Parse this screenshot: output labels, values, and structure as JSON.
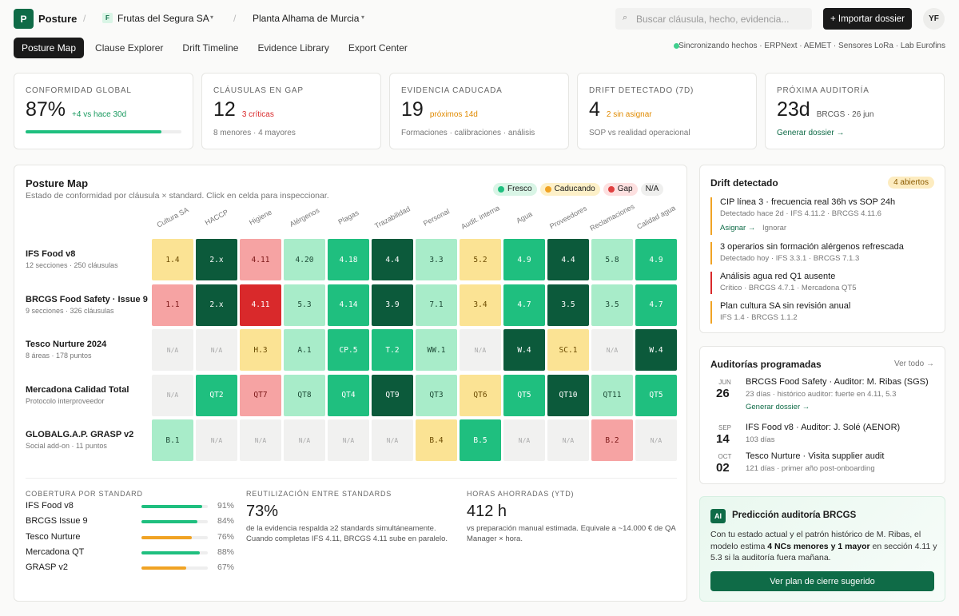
{
  "header": {
    "logo": "P",
    "brand": "Posture",
    "org_badge": "F",
    "org": "Frutas del Segura SA",
    "site": "Planta Alhama de Murcia",
    "search_placeholder": "Buscar cláusula, hecho, evidencia...",
    "import_button": "+ Importar dossier",
    "avatar": "YF"
  },
  "tabs": {
    "items": [
      "Posture Map",
      "Clause Explorer",
      "Drift Timeline",
      "Evidence Library",
      "Export Center"
    ],
    "active": 0
  },
  "sync_status": "Sincronizando hechos · ERPNext · AEMET · Sensores LoRa · Lab Eurofins",
  "kpis": [
    {
      "label": "CONFORMIDAD GLOBAL",
      "value": "87%",
      "progress": 87,
      "note": "+4 vs hace 30d",
      "note_tone": "green"
    },
    {
      "label": "CLÁUSULAS EN GAP",
      "value": "12",
      "note": "3 críticas",
      "note_tone": "red",
      "sub": "8 menores · 4 mayores"
    },
    {
      "label": "EVIDENCIA CADUCADA",
      "value": "19",
      "note": "próximos 14d",
      "note_tone": "orange",
      "sub": "Formaciones · calibraciones · análisis"
    },
    {
      "label": "DRIFT DETECTADO (7D)",
      "value": "4",
      "note": "2 sin asignar",
      "note_tone": "orange",
      "sub": "SOP vs realidad operacional"
    },
    {
      "label": "PRÓXIMA AUDITORÍA",
      "value": "23d",
      "note": "BRCGS · 26 jun",
      "note_tone": "gray",
      "link": "Generar dossier →"
    }
  ],
  "posture_map": {
    "title": "Posture Map",
    "subtitle": "Estado de conformidad por cláusula × standard. Click en celda para inspeccionar.",
    "legend": [
      {
        "label": "Fresco",
        "status": "fresh"
      },
      {
        "label": "Caducando",
        "status": "expiring"
      },
      {
        "label": "Gap",
        "status": "gap"
      },
      {
        "label": "N/A",
        "status": "na"
      }
    ],
    "columns": [
      "Cultura SA",
      "HACCP",
      "Higiene",
      "Alérgenos",
      "Plagas",
      "Trazabilidad",
      "Personal",
      "Audit. interna",
      "Agua",
      "Proveedores",
      "Reclamaciones",
      "Calidad agua"
    ],
    "rows": [
      {
        "name": "IFS Food v8",
        "meta": "12 secciones · 250 cláusulas",
        "cells": [
          {
            "label": "1.4",
            "status": "expiring"
          },
          {
            "label": "2.x",
            "status": "fresh3"
          },
          {
            "label": "4.11",
            "status": "gap"
          },
          {
            "label": "4.20",
            "status": "fresh1"
          },
          {
            "label": "4.18",
            "status": "fresh2"
          },
          {
            "label": "4.4",
            "status": "fresh3"
          },
          {
            "label": "3.3",
            "status": "fresh1"
          },
          {
            "label": "5.2",
            "status": "expiring"
          },
          {
            "label": "4.9",
            "status": "fresh2"
          },
          {
            "label": "4.4",
            "status": "fresh3"
          },
          {
            "label": "5.8",
            "status": "fresh1"
          },
          {
            "label": "4.9",
            "status": "fresh2"
          }
        ]
      },
      {
        "name": "BRCGS Food Safety · Issue 9",
        "meta": "9 secciones · 326 cláusulas",
        "cells": [
          {
            "label": "1.1",
            "status": "gap"
          },
          {
            "label": "2.x",
            "status": "fresh3"
          },
          {
            "label": "4.11",
            "status": "critical"
          },
          {
            "label": "5.3",
            "status": "fresh1"
          },
          {
            "label": "4.14",
            "status": "fresh2"
          },
          {
            "label": "3.9",
            "status": "fresh3"
          },
          {
            "label": "7.1",
            "status": "fresh1"
          },
          {
            "label": "3.4",
            "status": "expiring"
          },
          {
            "label": "4.7",
            "status": "fresh2"
          },
          {
            "label": "3.5",
            "status": "fresh3"
          },
          {
            "label": "3.5",
            "status": "fresh1"
          },
          {
            "label": "4.7",
            "status": "fresh2"
          }
        ]
      },
      {
        "name": "Tesco Nurture 2024",
        "meta": "8 áreas · 178 puntos",
        "cells": [
          {
            "label": "N/A",
            "status": "na"
          },
          {
            "label": "N/A",
            "status": "na"
          },
          {
            "label": "H.3",
            "status": "expiring"
          },
          {
            "label": "A.1",
            "status": "fresh1"
          },
          {
            "label": "CP.5",
            "status": "fresh2"
          },
          {
            "label": "T.2",
            "status": "fresh2"
          },
          {
            "label": "WW.1",
            "status": "fresh1"
          },
          {
            "label": "N/A",
            "status": "na"
          },
          {
            "label": "W.4",
            "status": "fresh3"
          },
          {
            "label": "SC.1",
            "status": "expiring"
          },
          {
            "label": "N/A",
            "status": "na"
          },
          {
            "label": "W.4",
            "status": "fresh3"
          }
        ]
      },
      {
        "name": "Mercadona Calidad Total",
        "meta": "Protocolo interproveedor",
        "cells": [
          {
            "label": "N/A",
            "status": "na"
          },
          {
            "label": "QT2",
            "status": "fresh2"
          },
          {
            "label": "QT7",
            "status": "gap"
          },
          {
            "label": "QT8",
            "status": "fresh1"
          },
          {
            "label": "QT4",
            "status": "fresh2"
          },
          {
            "label": "QT9",
            "status": "fresh3"
          },
          {
            "label": "QT3",
            "status": "fresh1"
          },
          {
            "label": "QT6",
            "status": "expiring"
          },
          {
            "label": "QT5",
            "status": "fresh2"
          },
          {
            "label": "QT10",
            "status": "fresh3"
          },
          {
            "label": "QT11",
            "status": "fresh1"
          },
          {
            "label": "QT5",
            "status": "fresh2"
          }
        ]
      },
      {
        "name": "GLOBALG.A.P. GRASP v2",
        "meta": "Social add-on · 11 puntos",
        "cells": [
          {
            "label": "B.1",
            "status": "fresh1"
          },
          {
            "label": "N/A",
            "status": "na"
          },
          {
            "label": "N/A",
            "status": "na"
          },
          {
            "label": "N/A",
            "status": "na"
          },
          {
            "label": "N/A",
            "status": "na"
          },
          {
            "label": "N/A",
            "status": "na"
          },
          {
            "label": "B.4",
            "status": "expiring"
          },
          {
            "label": "B.5",
            "status": "fresh2"
          },
          {
            "label": "N/A",
            "status": "na"
          },
          {
            "label": "N/A",
            "status": "na"
          },
          {
            "label": "B.2",
            "status": "gap"
          },
          {
            "label": "N/A",
            "status": "na"
          }
        ]
      }
    ]
  },
  "coverage": {
    "title": "COBERTURA POR STANDARD",
    "items": [
      {
        "name": "IFS Food v8",
        "value": 91,
        "label": "91%",
        "color": "#1fbf7f"
      },
      {
        "name": "BRCGS Issue 9",
        "value": 84,
        "label": "84%",
        "color": "#1fbf7f"
      },
      {
        "name": "Tesco Nurture",
        "value": 76,
        "label": "76%",
        "color": "#f0a324"
      },
      {
        "name": "Mercadona QT",
        "value": 88,
        "label": "88%",
        "color": "#1fbf7f"
      },
      {
        "name": "GRASP v2",
        "value": 67,
        "label": "67%",
        "color": "#f0a324"
      }
    ]
  },
  "reuse": {
    "title": "REUTILIZACIÓN ENTRE STANDARDS",
    "value": "73%",
    "text": "de la evidencia respalda ≥2 standards simultáneamente. Cuando completas IFS 4.11, BRCGS 4.11 sube en paralelo."
  },
  "hours": {
    "title": "HORAS AHORRADAS (YTD)",
    "value": "412 h",
    "text": "vs preparación manual estimada. Equivale a ~14.000 € de QA Manager × hora."
  },
  "drift": {
    "title": "Drift detectado",
    "badge": "4 abiertos",
    "items": [
      {
        "title": "CIP línea 3 · frecuencia real 36h vs SOP 24h",
        "meta": "Detectado hace 2d · IFS 4.11.2 · BRCGS 4.11.6",
        "tone": "#f0a324",
        "actions": [
          "Asignar →",
          "Ignorar"
        ]
      },
      {
        "title": "3 operarios sin formación alérgenos refrescada",
        "meta": "Detectado hoy · IFS 3.3.1 · BRCGS 7.1.3",
        "tone": "#f0a324"
      },
      {
        "title": "Análisis agua red Q1 ausente",
        "meta": "Crítico · BRCGS 4.7.1 · Mercadona QT5",
        "tone": "#d9292b"
      },
      {
        "title": "Plan cultura SA sin revisión anual",
        "meta": "IFS 1.4 · BRCGS 1.1.2",
        "tone": "#f0a324"
      }
    ]
  },
  "audits": {
    "title": "Auditorías programadas",
    "link": "Ver todo →",
    "items": [
      {
        "month": "JUN",
        "day": "26",
        "title": "BRCGS Food Safety · Auditor: M. Ribas (SGS)",
        "meta": "23 días · histórico auditor: fuerte en 4.11, 5.3",
        "link": "Generar dossier →"
      },
      {
        "month": "SEP",
        "day": "14",
        "title": "IFS Food v8 · Auditor: J. Solé (AENOR)",
        "meta": "103 días"
      },
      {
        "month": "OCT",
        "day": "02",
        "title": "Tesco Nurture · Visita supplier audit",
        "meta": "121 días · primer año post-onboarding"
      }
    ]
  },
  "prediction": {
    "badge": "AI",
    "title": "Predicción auditoría BRCGS",
    "parts": [
      {
        "text": "Con tu estado actual y el patrón histórico de M. Ribas, el modelo estima ",
        "bold": false
      },
      {
        "text": "4 NCs menores y 1 mayor",
        "bold": true
      },
      {
        "text": " en sección 4.11 y 5.3 si la auditoría fuera mañana.",
        "bold": false
      }
    ],
    "button": "Ver plan de cierre sugerido"
  }
}
